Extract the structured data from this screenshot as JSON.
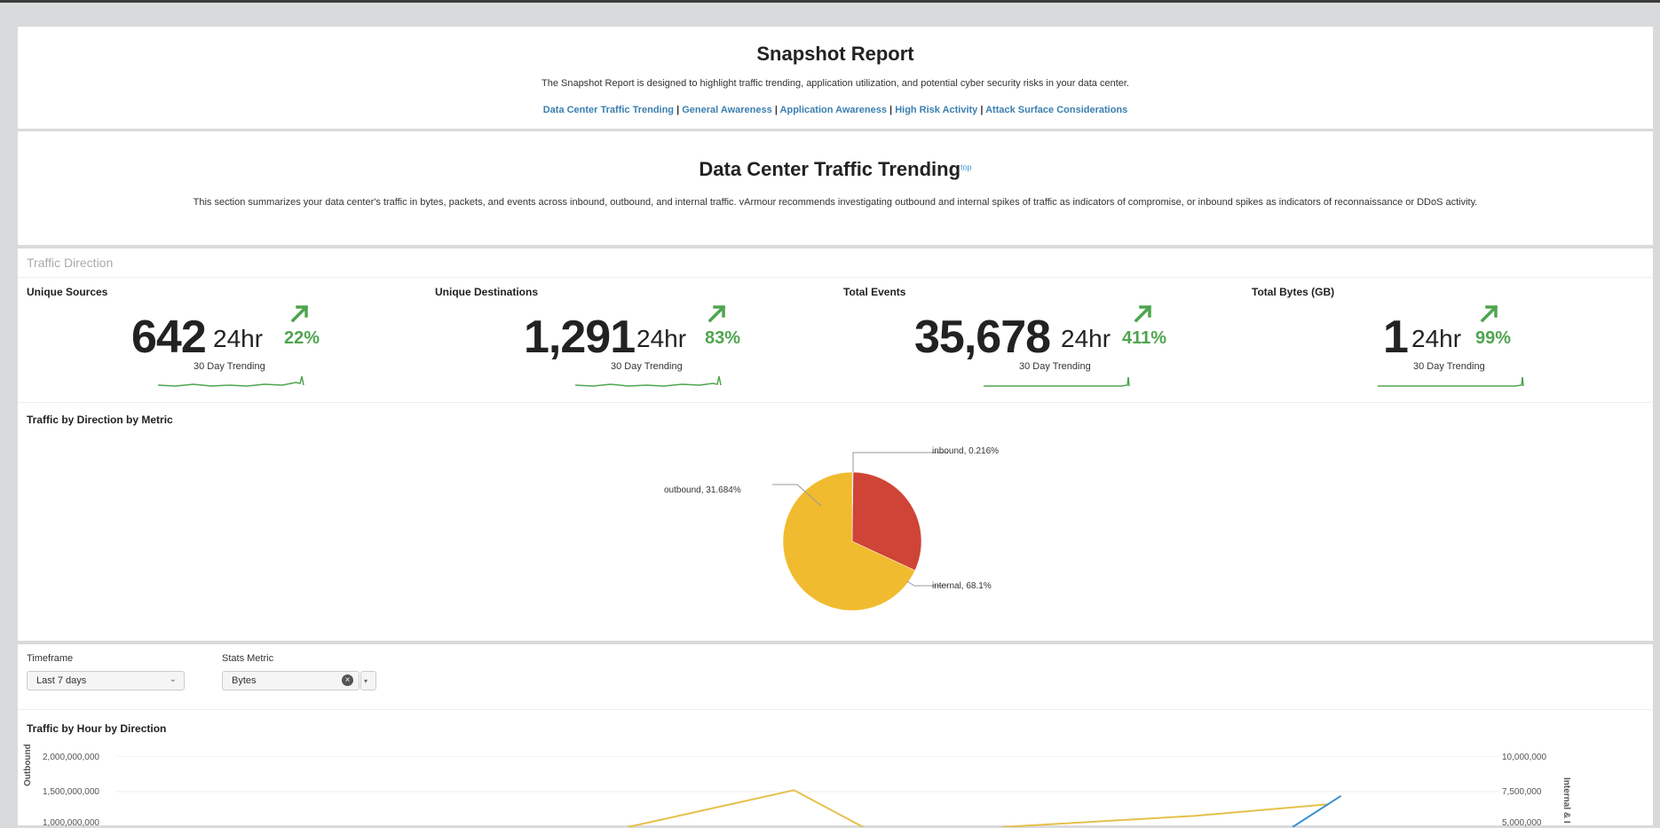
{
  "header": {
    "title": "Snapshot Report",
    "description": "The Snapshot Report is designed to highlight traffic trending, application utilization, and potential cyber security risks in your data center.",
    "links": [
      "Data Center Traffic Trending",
      "General Awareness",
      "Application Awareness",
      "High Risk Activity",
      "Attack Surface Considerations"
    ],
    "separator": "|"
  },
  "section": {
    "title": "Data Center Traffic Trending",
    "top_link": "top",
    "description": "This section summarizes your data center's traffic in bytes, packets, and events across inbound, outbound, and internal traffic. vArmour recommends investigating outbound and internal spikes of traffic as indicators of compromise, or inbound spikes as indicators of reconnaissance or DDoS activity."
  },
  "traffic_direction": {
    "heading": "Traffic Direction",
    "stats": [
      {
        "label": "Unique Sources",
        "value": "642",
        "unit": "24hr",
        "change": "22%",
        "trend_label": "30 Day Trending"
      },
      {
        "label": "Unique Destinations",
        "value": "1,291",
        "unit": "24hr",
        "change": "83%",
        "trend_label": "30 Day Trending"
      },
      {
        "label": "Total Events",
        "value": "35,678",
        "unit": "24hr",
        "change": "411%",
        "trend_label": "30 Day Trending"
      },
      {
        "label": "Total Bytes (GB)",
        "value": "1",
        "unit": "24hr",
        "change": "99%",
        "trend_label": "30 Day Trending"
      }
    ]
  },
  "chart_data": [
    {
      "type": "pie",
      "title": "Traffic by Direction by Metric",
      "categories": [
        "inbound",
        "outbound",
        "internal"
      ],
      "values": [
        0.216,
        31.684,
        68.1
      ],
      "labels": [
        "inbound, 0.216%",
        "outbound, 31.684%",
        "internal, 68.1%"
      ],
      "colors": [
        "#9aa8b8",
        "#cf4436",
        "#f0bb2e"
      ]
    },
    {
      "type": "line",
      "title": "Traffic by Hour by Direction",
      "ylabel_left": "Outbound",
      "ylabel_right": "Internal & I",
      "yticks_left": [
        "2,000,000,000",
        "1,500,000,000",
        "1,000,000,000"
      ],
      "yticks_right": [
        "10,000,000",
        "7,500,000",
        "5,000,000"
      ],
      "ylim_left": [
        1000000000,
        2000000000
      ],
      "ylim_right": [
        5000000,
        10000000
      ],
      "series": [
        {
          "name": "outbound",
          "color": "#e5c04a",
          "x": [
            0.37,
            0.49,
            0.54
          ],
          "values": [
            1000000000,
            1520000000,
            1000000000
          ]
        },
        {
          "name": "internal",
          "color": "#e5c04a",
          "x": [
            0.64,
            0.78,
            0.875
          ],
          "values": [
            5000000,
            5800000,
            6600000
          ]
        },
        {
          "name": "inbound",
          "color": "#3a8fd0",
          "x": [
            0.85,
            0.885
          ],
          "values": [
            5000000,
            7200000
          ]
        }
      ]
    }
  ],
  "filters": {
    "timeframe_label": "Timeframe",
    "timeframe_value": "Last 7 days",
    "stats_metric_label": "Stats Metric",
    "stats_metric_value": "Bytes"
  },
  "colors": {
    "accent_green": "#4fa54f",
    "link_blue": "#3a7fb0"
  }
}
